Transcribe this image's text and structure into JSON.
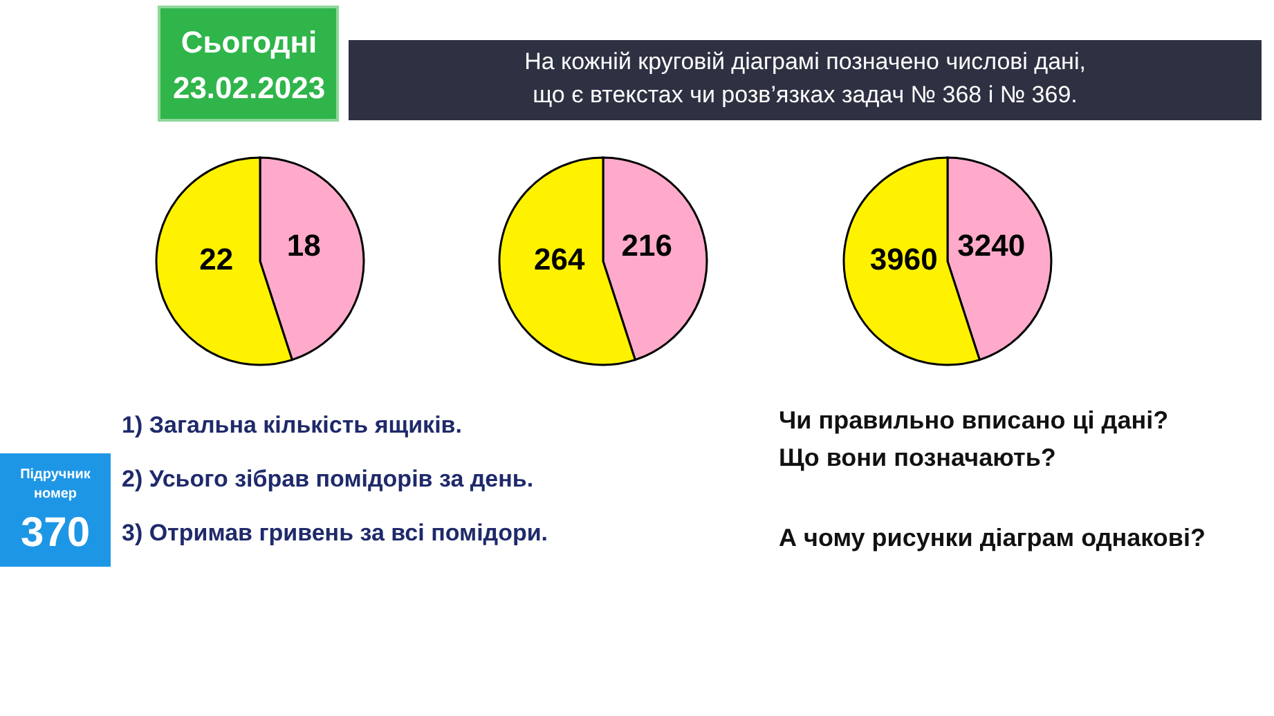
{
  "chart_data": [
    {
      "type": "other",
      "title": "На кожній круговій діаграмі позначено числові дані, що є втекстах чи розв’язках задач № 368 і № 369.",
      "annotations": [
        "Сьогодні",
        "23.02.2023"
      ]
    },
    {
      "type": "pie",
      "categories": [
        null,
        null
      ],
      "values": [
        18,
        22
      ],
      "colors": [
        "#ffaacb",
        "#fff200"
      ],
      "data_labels": true
    },
    {
      "type": "pie",
      "categories": [
        null,
        null
      ],
      "values": [
        216,
        264
      ],
      "colors": [
        "#ffaacb",
        "#fff200"
      ],
      "data_labels": true
    },
    {
      "type": "pie",
      "categories": [
        null,
        null
      ],
      "values": [
        3240,
        3960
      ],
      "colors": [
        "#ffaacb",
        "#fff200"
      ],
      "data_labels": true
    },
    {
      "type": "other",
      "annotations": [
        "Підручник",
        "номер",
        "370",
        "1) Загальна кількість ящиків.",
        "2) Усього зібрав помідорів за день.",
        "3) Отримав гривень за всі помідори.",
        "Чи правильно вписано ці дані?",
        "Що вони позначають?",
        "А чому рисунки діаграм однакові?"
      ]
    }
  ]
}
